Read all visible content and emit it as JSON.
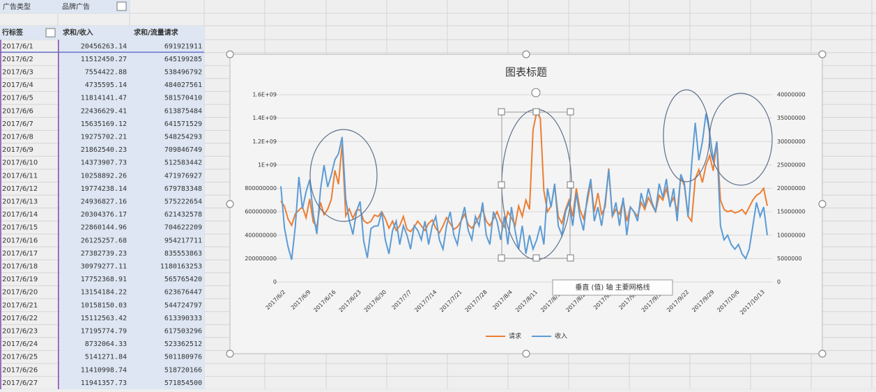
{
  "table": {
    "filter": {
      "label": "广告类型",
      "value": "品牌广告"
    },
    "headers": [
      "行标签",
      "求和/收入",
      "求和/流量请求"
    ],
    "rows": [
      [
        "2017/6/1",
        "20456263.14",
        "691921911"
      ],
      [
        "2017/6/2",
        "11512450.27",
        "645199285"
      ],
      [
        "2017/6/3",
        "7554422.88",
        "538496792"
      ],
      [
        "2017/6/4",
        "4735595.14",
        "484027561"
      ],
      [
        "2017/6/5",
        "11814141.47",
        "581570410"
      ],
      [
        "2017/6/6",
        "22436629.41",
        "613875484"
      ],
      [
        "2017/6/7",
        "15635169.12",
        "641571529"
      ],
      [
        "2017/6/8",
        "19275702.21",
        "548254293"
      ],
      [
        "2017/6/9",
        "21862540.23",
        "709846749"
      ],
      [
        "2017/6/10",
        "14373907.73",
        "512583442"
      ],
      [
        "2017/6/11",
        "10258892.26",
        "471976927"
      ],
      [
        "2017/6/12",
        "19774238.14",
        "679783348"
      ],
      [
        "2017/6/13",
        "24936827.16",
        "575222654"
      ],
      [
        "2017/6/14",
        "20304376.17",
        "621432578"
      ],
      [
        "2017/6/15",
        "22860144.96",
        "704622209"
      ],
      [
        "2017/6/16",
        "26125257.68",
        "954217711"
      ],
      [
        "2017/6/17",
        "27382739.23",
        "835553863"
      ],
      [
        "2017/6/18",
        "30979277.11",
        "1180163253"
      ],
      [
        "2017/6/19",
        "17752368.91",
        "565765420"
      ],
      [
        "2017/6/20",
        "13154184.22",
        "623676447"
      ],
      [
        "2017/6/21",
        "10158150.03",
        "544724797"
      ],
      [
        "2017/6/22",
        "15112563.42",
        "613390333"
      ],
      [
        "2017/6/23",
        "17195774.79",
        "617503296"
      ],
      [
        "2017/6/24",
        "8732064.33",
        "523362512"
      ],
      [
        "2017/6/25",
        "5141271.84",
        "501180976"
      ],
      [
        "2017/6/26",
        "11410998.74",
        "518720166"
      ],
      [
        "2017/6/27",
        "11941357.73",
        "571854500"
      ]
    ]
  },
  "tooltip": "垂直 (值) 轴 主要网格线",
  "chart_data": {
    "type": "line",
    "title": "图表标题",
    "categories": [
      null,
      "2017/6/2",
      null,
      null,
      null,
      null,
      null,
      null,
      "2017/6/9",
      null,
      null,
      null,
      null,
      null,
      null,
      "2017/6/16",
      null,
      null,
      null,
      null,
      null,
      null,
      "2017/6/23",
      null,
      null,
      null,
      null,
      null,
      null,
      "2017/6/30",
      null,
      null,
      null,
      null,
      null,
      null,
      "2017/7/7",
      null,
      null,
      null,
      null,
      null,
      null,
      "2017/7/14",
      null,
      null,
      null,
      null,
      null,
      null,
      "2017/7/21",
      null,
      null,
      null,
      null,
      null,
      null,
      "2017/7/28",
      null,
      null,
      null,
      null,
      null,
      null,
      "2017/8/4",
      null,
      null,
      null,
      null,
      null,
      null,
      "2017/8/11",
      null,
      null,
      null,
      null,
      null,
      null,
      "2017/8/18",
      null,
      null,
      null,
      null,
      null,
      null,
      "2017/8/25",
      null,
      null,
      null,
      null,
      null,
      null,
      "2017/9/1",
      null,
      null,
      null,
      null,
      null,
      null,
      "2017/9/8",
      null,
      null,
      null,
      null,
      null,
      null,
      "2017/9/15",
      null,
      null,
      null,
      null,
      null,
      null,
      "2017/9/22",
      null,
      null,
      null,
      null,
      null,
      null,
      "2017/9/29",
      null,
      null,
      null,
      null,
      null,
      null,
      "2017/10/6",
      null,
      null,
      null,
      null,
      null,
      null,
      "2017/10/13",
      null
    ],
    "series": [
      {
        "name": "请求",
        "color": "#ed7d31",
        "axis": "y",
        "values": [
          691921911,
          645199285,
          538496792,
          484027561,
          581570410,
          613875484,
          641571529,
          548254293,
          709846749,
          512583442,
          471976927,
          679783348,
          575222654,
          621432578,
          704622209,
          954217711,
          835553863,
          1180163253,
          565765420,
          623676447,
          544724797,
          613390333,
          617503296,
          523362512,
          501180976,
          518720166,
          571854500,
          560000000,
          600000000,
          540000000,
          460000000,
          520000000,
          440000000,
          480000000,
          560000000,
          450000000,
          430000000,
          470000000,
          520000000,
          480000000,
          440000000,
          500000000,
          530000000,
          460000000,
          420000000,
          480000000,
          550000000,
          500000000,
          450000000,
          470000000,
          520000000,
          580000000,
          490000000,
          460000000,
          500000000,
          560000000,
          620000000,
          520000000,
          480000000,
          540000000,
          600000000,
          520000000,
          470000000,
          600000000,
          550000000,
          480000000,
          650000000,
          560000000,
          700000000,
          620000000,
          1300000000,
          1450000000,
          1400000000,
          780000000,
          600000000,
          650000000,
          820000000,
          560000000,
          500000000,
          620000000,
          700000000,
          560000000,
          800000000,
          620000000,
          540000000,
          680000000,
          850000000,
          600000000,
          760000000,
          580000000,
          640000000,
          970000000,
          560000000,
          620000000,
          580000000,
          700000000,
          520000000,
          640000000,
          600000000,
          560000000,
          680000000,
          620000000,
          720000000,
          660000000,
          600000000,
          740000000,
          700000000,
          800000000,
          660000000,
          720000000,
          600000000,
          900000000,
          820000000,
          560000000,
          520000000,
          880000000,
          960000000,
          850000000,
          1000000000,
          1080000000,
          950000000,
          1200000000,
          700000000,
          620000000,
          600000000,
          610000000,
          590000000,
          600000000,
          620000000,
          580000000,
          640000000,
          700000000,
          740000000,
          760000000,
          800000000,
          650000000
        ]
      },
      {
        "name": "收入",
        "color": "#5b9bd5",
        "axis": "y2",
        "values": [
          20456263.14,
          11512450.27,
          7554422.88,
          4735595.14,
          11814141.47,
          22436629.41,
          15635169.12,
          19275702.21,
          21862540.23,
          14373907.73,
          10258892.26,
          19774238.14,
          24936827.16,
          20304376.17,
          22860144.96,
          26125257.68,
          27382739.23,
          30979277.11,
          17752368.91,
          13154184.22,
          10158150.03,
          15112563.42,
          17195774.79,
          8732064.33,
          5141271.84,
          11410998.74,
          11941357.73,
          12000000,
          15000000,
          9000000,
          6000000,
          11000000,
          13000000,
          8000000,
          12000000,
          10000000,
          7000000,
          12000000,
          11000000,
          9000000,
          13000000,
          8000000,
          12000000,
          14000000,
          9000000,
          7000000,
          12000000,
          15000000,
          10000000,
          8000000,
          13000000,
          16000000,
          11000000,
          9000000,
          14000000,
          12000000,
          17000000,
          10000000,
          8000000,
          15000000,
          13000000,
          9000000,
          14000000,
          8000000,
          16000000,
          11000000,
          7000000,
          12000000,
          6000000,
          10000000,
          7000000,
          9000000,
          12000000,
          8000000,
          20000000,
          16000000,
          21000000,
          12000000,
          10000000,
          15000000,
          17000000,
          12000000,
          19000000,
          14000000,
          11000000,
          18000000,
          22000000,
          13000000,
          16000000,
          12000000,
          17000000,
          24000000,
          14000000,
          17000000,
          12000000,
          18000000,
          10000000,
          16000000,
          15000000,
          13000000,
          19000000,
          16000000,
          20000000,
          17000000,
          15000000,
          21000000,
          18000000,
          22000000,
          16000000,
          20000000,
          13000000,
          23000000,
          21000000,
          14000000,
          25000000,
          34000000,
          26000000,
          30000000,
          36000000,
          32000000,
          26000000,
          30000000,
          12000000,
          9000000,
          10000000,
          8000000,
          7000000,
          8000000,
          6000000,
          5000000,
          7000000,
          12000000,
          17000000,
          14000000,
          16000000,
          10000000
        ]
      }
    ],
    "ylim": [
      0,
      1600000000
    ],
    "yticks": [
      0,
      200000000,
      400000000,
      600000000,
      800000000,
      {
        "value": 1000000000,
        "label": "1E+09"
      },
      {
        "value": 1200000000,
        "label": "1.2E+09"
      },
      {
        "value": 1400000000,
        "label": "1.4E+09"
      },
      {
        "value": 1600000000,
        "label": "1.6E+09"
      }
    ],
    "y2lim": [
      0,
      40000000
    ],
    "y2ticks": [
      0,
      5000000,
      10000000,
      15000000,
      20000000,
      25000000,
      30000000,
      35000000,
      40000000
    ],
    "grid": true,
    "legend": "bottom"
  }
}
